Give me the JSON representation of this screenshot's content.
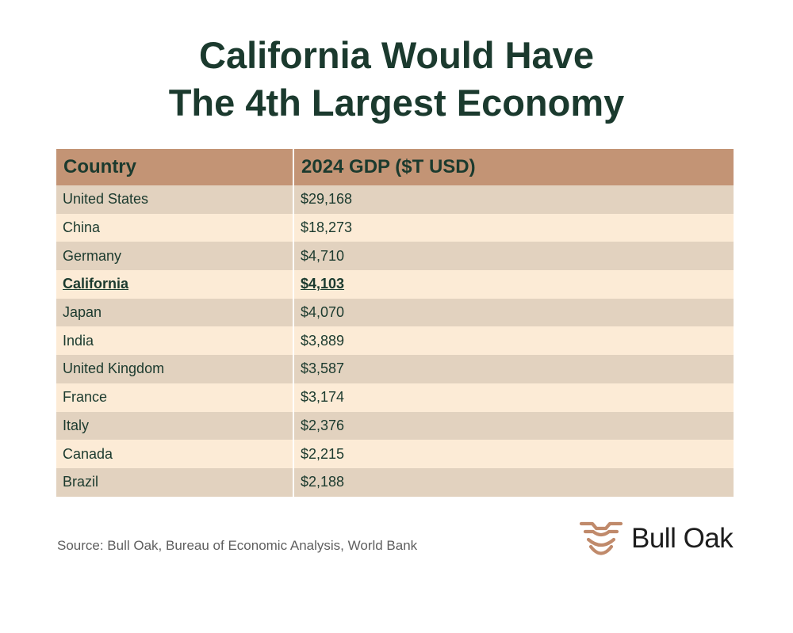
{
  "title": {
    "line1": "California Would Have",
    "line2": "The 4th Largest Economy"
  },
  "chart_data": {
    "type": "table",
    "title": "California Would Have The 4th Largest Economy",
    "columns": [
      "Country",
      "2024 GDP ($T USD)"
    ],
    "rows": [
      {
        "country": "United States",
        "gdp": "$29,168",
        "highlight": false
      },
      {
        "country": "China",
        "gdp": "$18,273",
        "highlight": false
      },
      {
        "country": "Germany",
        "gdp": "$4,710",
        "highlight": false
      },
      {
        "country": "California",
        "gdp": "$4,103",
        "highlight": true
      },
      {
        "country": "Japan",
        "gdp": "$4,070",
        "highlight": false
      },
      {
        "country": "India",
        "gdp": "$3,889",
        "highlight": false
      },
      {
        "country": "United Kingdom",
        "gdp": "$3,587",
        "highlight": false
      },
      {
        "country": "France",
        "gdp": "$3,174",
        "highlight": false
      },
      {
        "country": "Italy",
        "gdp": "$2,376",
        "highlight": false
      },
      {
        "country": "Canada",
        "gdp": "$2,215",
        "highlight": false
      },
      {
        "country": "Brazil",
        "gdp": "$2,188",
        "highlight": false
      }
    ]
  },
  "source": "Source: Bull Oak, Bureau of Economic Analysis, World Bank",
  "logo": {
    "text": "Bull Oak",
    "icon": "bull-head-icon"
  },
  "colors": {
    "title": "#1b3a2e",
    "header_bg": "#c39475",
    "row_odd": "#e2d2bf",
    "row_even": "#fcebd6",
    "logo_icon": "#c08a6b"
  }
}
